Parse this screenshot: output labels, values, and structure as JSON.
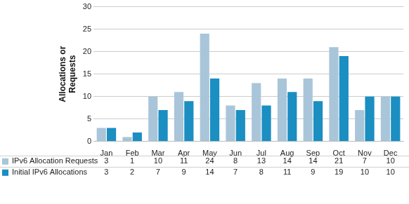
{
  "chart_data": {
    "type": "bar",
    "categories": [
      "Jan",
      "Feb",
      "Mar",
      "Apr",
      "May",
      "Jun",
      "Jul",
      "Aug",
      "Sep",
      "Oct",
      "Nov",
      "Dec"
    ],
    "series": [
      {
        "name": "IPv6 Allocation Requests",
        "color": "#a9c5d9",
        "values": [
          3,
          1,
          10,
          11,
          24,
          8,
          13,
          14,
          14,
          21,
          7,
          10
        ]
      },
      {
        "name": "Initial IPv6 Allocations",
        "color": "#1b8ec2",
        "values": [
          3,
          2,
          7,
          9,
          14,
          7,
          8,
          11,
          9,
          19,
          10,
          10
        ]
      }
    ],
    "ylabel": "Allocations or Requests",
    "ylim": [
      0,
      30
    ],
    "yticks": [
      0,
      5,
      10,
      15,
      20,
      25,
      30
    ],
    "grid": true
  }
}
